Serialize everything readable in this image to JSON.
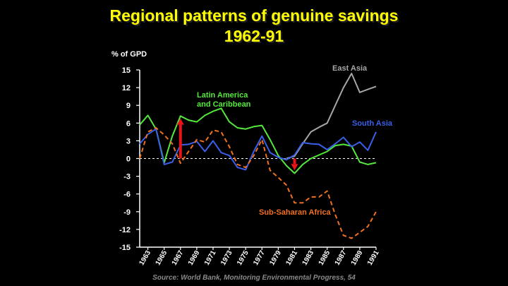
{
  "slide": {
    "title_line1": "Regional patterns of genuine savings",
    "title_line2": "1962-91",
    "source": "Source: World Bank, Monitoring Environmental Progress, 54"
  },
  "chart_data": {
    "type": "line",
    "ylabel": "% of GPD",
    "ylim": [
      -15,
      15
    ],
    "yticks": [
      15,
      12,
      9,
      6,
      3,
      0,
      -3,
      -6,
      -9,
      -12,
      -15
    ],
    "xlim": [
      1962,
      1991
    ],
    "xticks": [
      1963,
      1965,
      1967,
      1969,
      1971,
      1973,
      1975,
      1977,
      1979,
      1981,
      1983,
      1985,
      1987,
      1989,
      1991
    ],
    "zero_line": "dashed",
    "colors": {
      "axis": "#ffffff",
      "east_asia": "#a6a6a6",
      "latin_america": "#55e83c",
      "south_asia": "#3a5fe8",
      "sub_saharan_africa": "#f07020",
      "arrow": "#e8141a"
    },
    "series": [
      {
        "key": "east_asia",
        "name": "East Asia",
        "label_lines": [
          "East Asia"
        ],
        "style": "solid",
        "x": [
          1980,
          1981,
          1982,
          1983,
          1984,
          1985,
          1986,
          1987,
          1988,
          1989,
          1990,
          1991
        ],
        "values": [
          0.0,
          0.4,
          2.5,
          4.5,
          5.3,
          6.0,
          9.0,
          12.0,
          14.4,
          11.2,
          11.7,
          12.2
        ]
      },
      {
        "key": "latin_america",
        "name": "Latin America and Caribbean",
        "label_lines": [
          "Latin America",
          "and Caribbean"
        ],
        "style": "solid",
        "x": [
          1962,
          1963,
          1964,
          1965,
          1966,
          1967,
          1968,
          1969,
          1970,
          1971,
          1972,
          1973,
          1974,
          1975,
          1976,
          1977,
          1978,
          1979,
          1980,
          1981,
          1982,
          1983,
          1984,
          1985,
          1986,
          1987,
          1988,
          1989,
          1990,
          1991
        ],
        "values": [
          5.7,
          7.3,
          5.0,
          -0.7,
          3.8,
          7.2,
          6.5,
          6.2,
          7.3,
          8.0,
          8.5,
          6.2,
          5.2,
          5.0,
          5.4,
          5.6,
          3.2,
          0.5,
          -1.2,
          -2.5,
          -1.0,
          0.0,
          0.6,
          1.2,
          2.2,
          2.4,
          2.1,
          -0.6,
          -1.0,
          -0.7
        ]
      },
      {
        "key": "south_asia",
        "name": "South Asia",
        "label_lines": [
          "South Asia"
        ],
        "style": "solid",
        "x": [
          1962,
          1963,
          1964,
          1965,
          1966,
          1967,
          1968,
          1969,
          1970,
          1971,
          1972,
          1973,
          1974,
          1975,
          1976,
          1977,
          1978,
          1979,
          1980,
          1981,
          1982,
          1983,
          1984,
          1985,
          1986,
          1987,
          1988,
          1989,
          1990,
          1991
        ],
        "values": [
          2.5,
          4.1,
          5.0,
          -1.0,
          -0.6,
          2.3,
          2.4,
          2.9,
          1.2,
          3.0,
          1.0,
          0.5,
          -1.5,
          -1.9,
          1.2,
          3.8,
          1.0,
          0.2,
          -0.2,
          0.6,
          2.7,
          2.5,
          2.4,
          1.5,
          2.5,
          3.6,
          2.0,
          2.8,
          1.4,
          4.5
        ]
      },
      {
        "key": "sub_saharan_africa",
        "name": "Sub-Saharan Africa",
        "label_lines": [
          "Sub-Saharan Africa"
        ],
        "style": "dashed",
        "x": [
          1962,
          1963,
          1964,
          1965,
          1966,
          1967,
          1968,
          1969,
          1970,
          1971,
          1972,
          1973,
          1974,
          1975,
          1976,
          1977,
          1978,
          1979,
          1980,
          1981,
          1982,
          1983,
          1984,
          1985,
          1986,
          1987,
          1988,
          1989,
          1990,
          1991
        ],
        "values": [
          0.0,
          4.5,
          5.2,
          4.0,
          2.5,
          -0.8,
          1.2,
          3.2,
          2.8,
          4.8,
          4.5,
          2.0,
          -1.0,
          -1.5,
          0.5,
          3.2,
          -2.0,
          -3.2,
          -4.5,
          -7.5,
          -7.5,
          -6.5,
          -6.5,
          -5.5,
          -9.5,
          -13.0,
          -13.5,
          -12.5,
          -11.5,
          -9.0
        ]
      }
    ],
    "arrows": [
      {
        "x": 1967,
        "from": 0,
        "to": 6.8
      },
      {
        "x": 1981,
        "from": 0,
        "to": -2.0
      }
    ]
  }
}
